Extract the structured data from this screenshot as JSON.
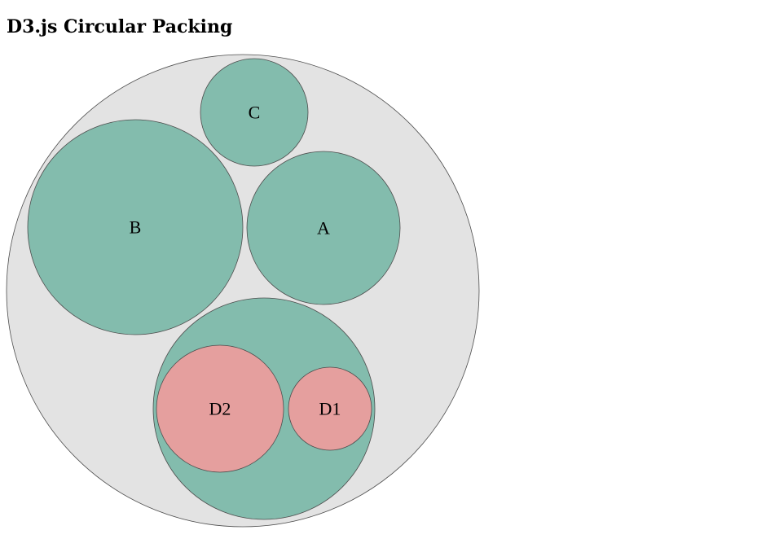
{
  "page": {
    "title": "D3.js Circular Packing"
  },
  "colors": {
    "background": "#ffffff",
    "root_fill": "#e3e3e3",
    "branch_fill": "#83bcad",
    "leaf_fill": "#e59f9e",
    "stroke": "#4d4d4d"
  },
  "nodes": {
    "root": {
      "label": ""
    },
    "a": {
      "label": "A"
    },
    "b": {
      "label": "B"
    },
    "c": {
      "label": "C"
    },
    "d": {
      "label": ""
    },
    "d1": {
      "label": "D1"
    },
    "d2": {
      "label": "D2"
    }
  }
}
